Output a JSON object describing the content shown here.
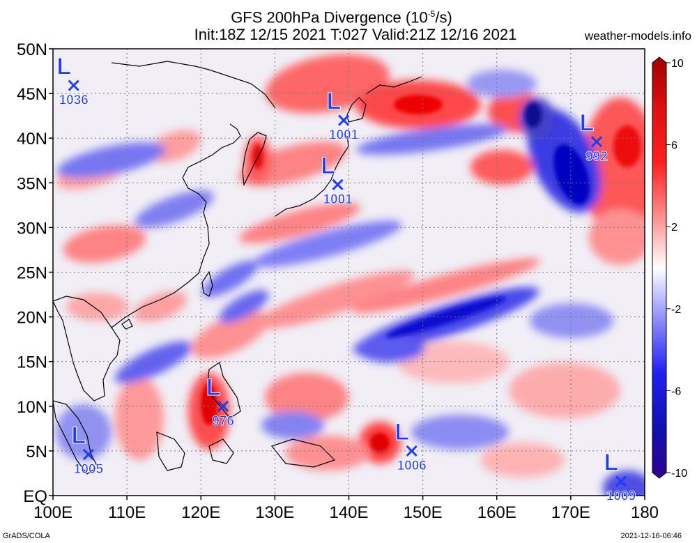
{
  "title": {
    "line1_pre": "GFS 200hPa Divergence (10",
    "line1_sup": "-5",
    "line1_post": "/s)",
    "line2": "Init:18Z 12/15 2021 T:027 Valid:21Z 12/16 2021"
  },
  "site": "weather-models.info",
  "footer": {
    "left": "GrADS/COLA",
    "right": "2021-12-16-06:46"
  },
  "map": {
    "lon_labels": [
      "100E",
      "110E",
      "120E",
      "130E",
      "140E",
      "150E",
      "160E",
      "170E",
      "180"
    ],
    "lat_labels": [
      "EQ",
      "5N",
      "10N",
      "15N",
      "20N",
      "25N",
      "30N",
      "35N",
      "40N",
      "45N",
      "50N"
    ],
    "lon_range": [
      100,
      180
    ],
    "lat_range": [
      0,
      50
    ],
    "grid": true
  },
  "colorbar": {
    "labels": [
      "10",
      "6",
      "2",
      "-2",
      "-6",
      "-10"
    ],
    "values": [
      10,
      6,
      2,
      -2,
      -6,
      -10
    ]
  },
  "lows": [
    {
      "lon": 102.8,
      "lat": 45.9,
      "value": "1036"
    },
    {
      "lon": 139.3,
      "lat": 42.0,
      "value": "1001"
    },
    {
      "lon": 138.5,
      "lat": 34.8,
      "value": "1001"
    },
    {
      "lon": 173.5,
      "lat": 39.6,
      "value": "992"
    },
    {
      "lon": 123.0,
      "lat": 10.0,
      "value": "976"
    },
    {
      "lon": 104.8,
      "lat": 4.6,
      "value": "1005"
    },
    {
      "lon": 148.5,
      "lat": 5.0,
      "value": "1006"
    },
    {
      "lon": 176.8,
      "lat": 1.6,
      "value": "1009"
    }
  ],
  "colors": {
    "low_marker": "#1e3cff",
    "positive": "#ff1010",
    "negative": "#1010e0",
    "coast": "#000000"
  }
}
